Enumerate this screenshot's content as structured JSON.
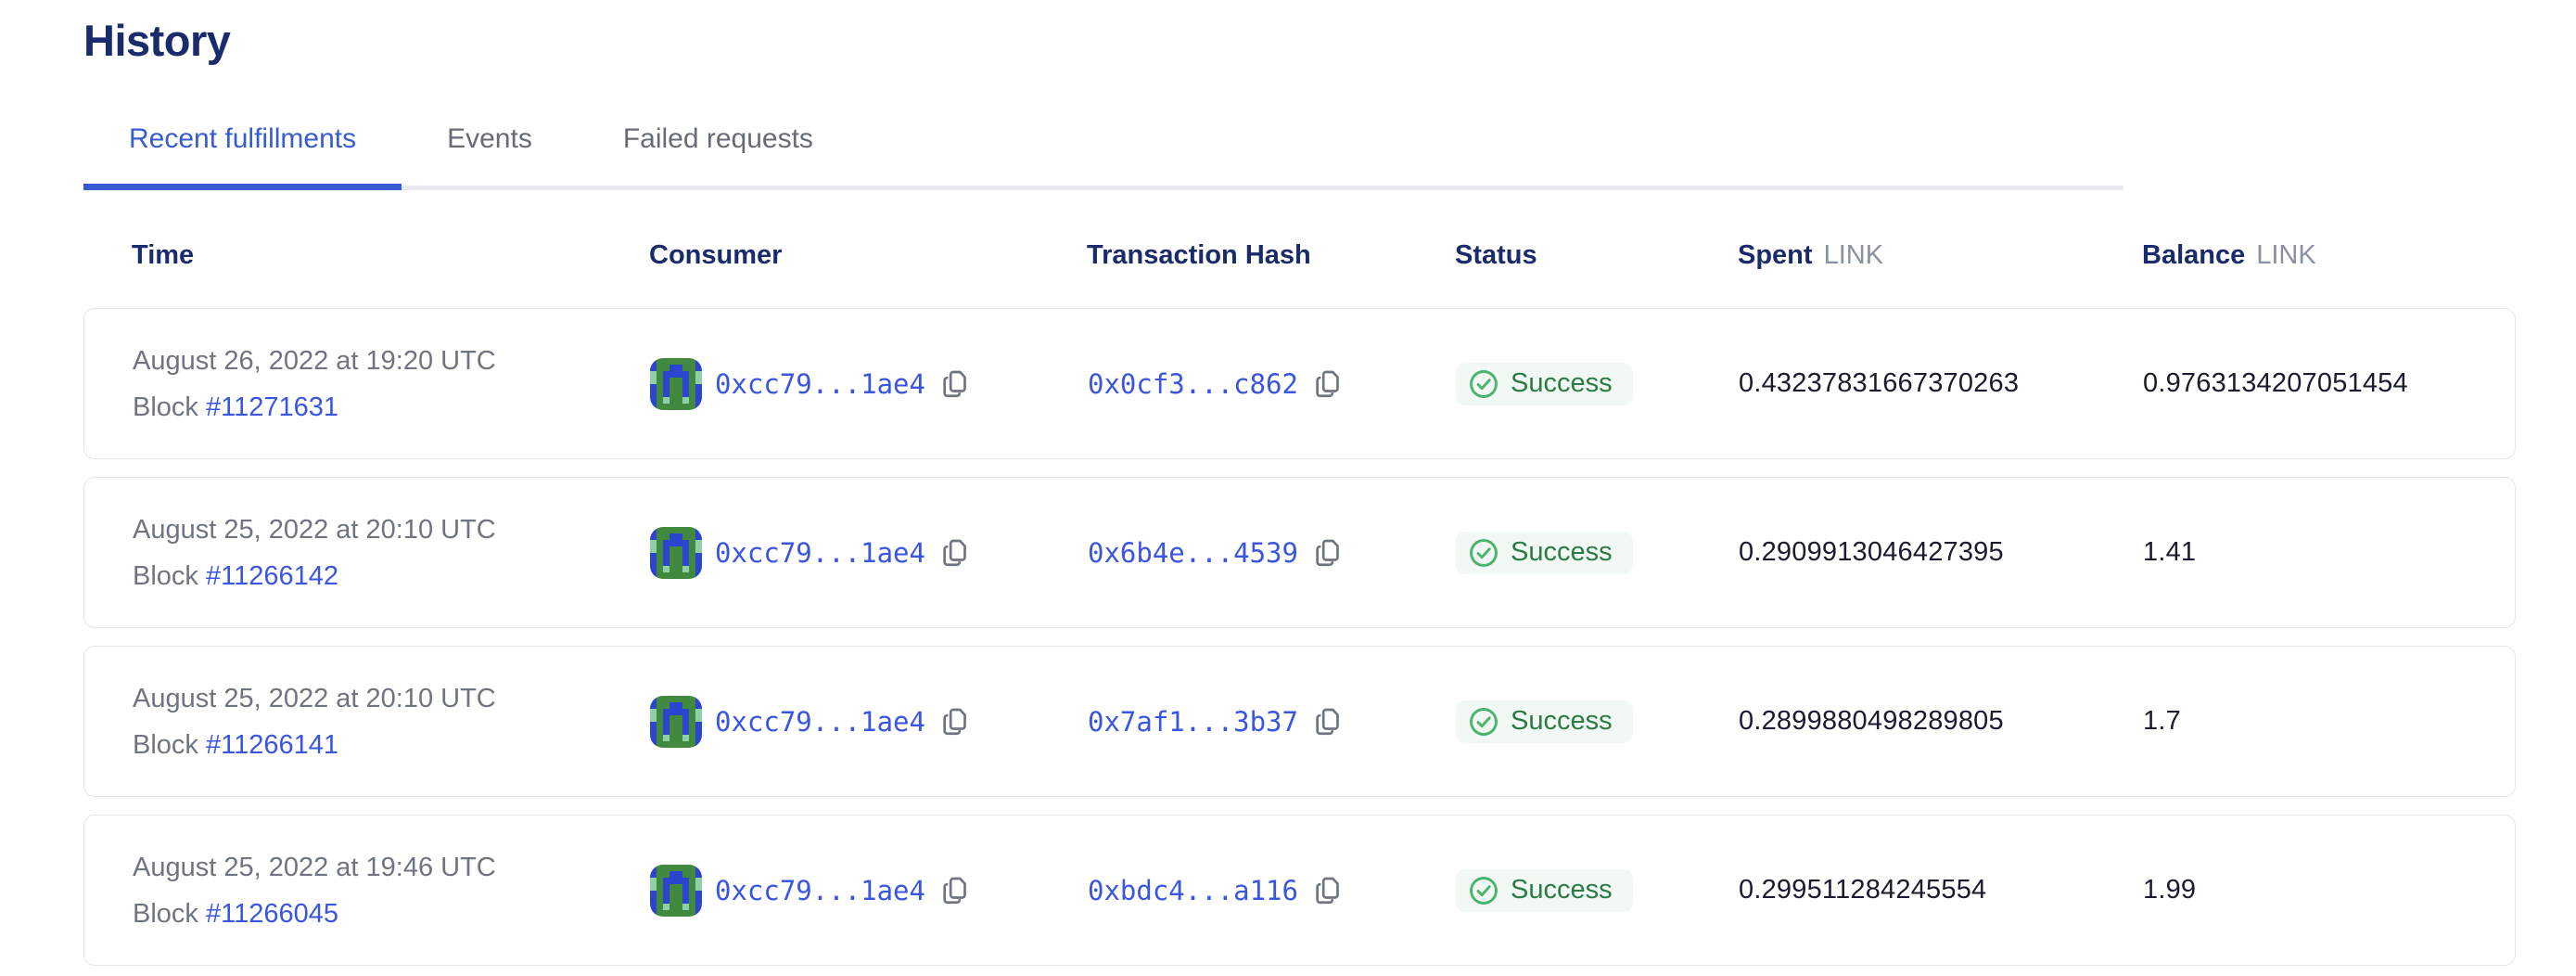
{
  "page": {
    "title": "History"
  },
  "tabs": [
    {
      "label": "Recent fulfillments",
      "active": true
    },
    {
      "label": "Events",
      "active": false
    },
    {
      "label": "Failed requests",
      "active": false
    }
  ],
  "table": {
    "headers": {
      "time": "Time",
      "consumer": "Consumer",
      "transaction_hash": "Transaction Hash",
      "status": "Status",
      "spent": "Spent",
      "spent_unit": "LINK",
      "balance": "Balance",
      "balance_unit": "LINK"
    },
    "rows": [
      {
        "time": "August 26, 2022 at 19:20 UTC",
        "block_label": "Block",
        "block_number": "#11271631",
        "consumer_address": "0xcc79...1ae4",
        "tx_hash": "0x0cf3...c862",
        "status": "Success",
        "spent": "0.43237831667370263",
        "balance": "0.9763134207051454"
      },
      {
        "time": "August 25, 2022 at 20:10 UTC",
        "block_label": "Block",
        "block_number": "#11266142",
        "consumer_address": "0xcc79...1ae4",
        "tx_hash": "0x6b4e...4539",
        "status": "Success",
        "spent": "0.2909913046427395",
        "balance": "1.41"
      },
      {
        "time": "August 25, 2022 at 20:10 UTC",
        "block_label": "Block",
        "block_number": "#11266141",
        "consumer_address": "0xcc79...1ae4",
        "tx_hash": "0x7af1...3b37",
        "status": "Success",
        "spent": "0.2899880498289805",
        "balance": "1.7"
      },
      {
        "time": "August 25, 2022 at 19:46 UTC",
        "block_label": "Block",
        "block_number": "#11266045",
        "consumer_address": "0xcc79...1ae4",
        "tx_hash": "0xbdc4...a116",
        "status": "Success",
        "spent": "0.299511284245554",
        "balance": "1.99"
      }
    ]
  },
  "identicon": {
    "pattern": [
      "BGGGGGGB",
      "BGGBBGGB",
      "MGBBBBGM",
      "MGBGGBGM",
      "BGBGGBGB",
      "BGBGGBGB",
      "BGMGGMGB",
      "BGGGGGGB"
    ],
    "colors": {
      "G": "#41893f",
      "B": "#2c45cf",
      "M": "#8fd0a9"
    }
  },
  "colors": {
    "accent_blue": "#375BD2",
    "heading_navy": "#1A2B6B",
    "link_blue": "#3A55E0",
    "muted_gray": "#6E7480",
    "success_text": "#2B7B44",
    "success_icon": "#4DB56F",
    "success_bg": "#F2F9F4",
    "card_border": "#E4E6EB"
  }
}
